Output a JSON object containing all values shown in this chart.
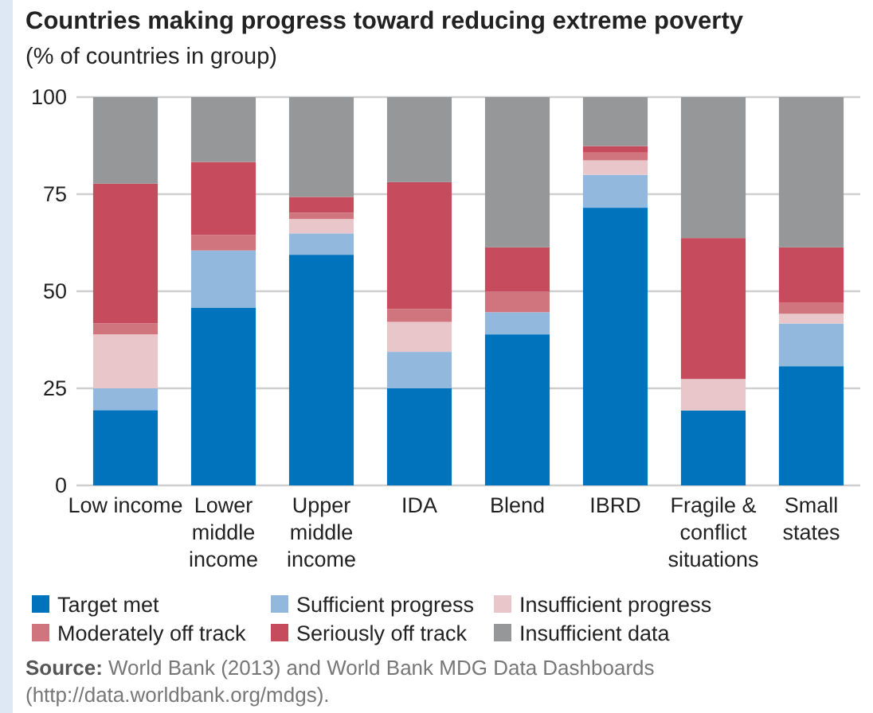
{
  "chart_data": {
    "type": "bar",
    "stacked": true,
    "title": "Countries making progress toward reducing extreme poverty",
    "subtitle": "(% of countries in group)",
    "categories": [
      "Low income",
      "Lower middle income",
      "Upper middle income",
      "IDA",
      "Blend",
      "IBRD",
      "Fragile & conflict situations",
      "Small states"
    ],
    "series": [
      {
        "name": "Target met",
        "color": "#0073bd",
        "values": [
          19.4,
          45.8,
          59.4,
          25,
          38.9,
          71.5,
          19.3,
          30.7
        ]
      },
      {
        "name": "Sufficient progress",
        "color": "#93b8de",
        "values": [
          5.6,
          14.7,
          5.5,
          9.4,
          5.7,
          8.5,
          0,
          11
        ]
      },
      {
        "name": "Insufficient progress",
        "color": "#e8c6ca",
        "values": [
          13.9,
          0,
          3.7,
          7.7,
          0,
          3.7,
          8.1,
          2.5
        ]
      },
      {
        "name": "Moderately off track",
        "color": "#d0747e",
        "values": [
          2.8,
          4,
          1.6,
          3.3,
          5.3,
          2,
          0,
          2.8
        ]
      },
      {
        "name": "Seriously off track",
        "color": "#c64b5c",
        "values": [
          36,
          18.8,
          4.1,
          32.7,
          11.4,
          1.7,
          36.3,
          14.3
        ]
      },
      {
        "name": "Insufficient data",
        "color": "#969799",
        "values": [
          22.3,
          16.7,
          25.7,
          21.9,
          38.7,
          12.6,
          36.3,
          38.7
        ]
      }
    ],
    "ylim": [
      0,
      100
    ],
    "yticks": [
      0,
      25,
      50,
      75,
      100
    ],
    "grid": "y",
    "legend": "bottom",
    "annotations": [
      "Source: World Bank (2013) and World Bank MDG Data Dashboards (http://data.worldbank.org/mdgs)."
    ]
  }
}
